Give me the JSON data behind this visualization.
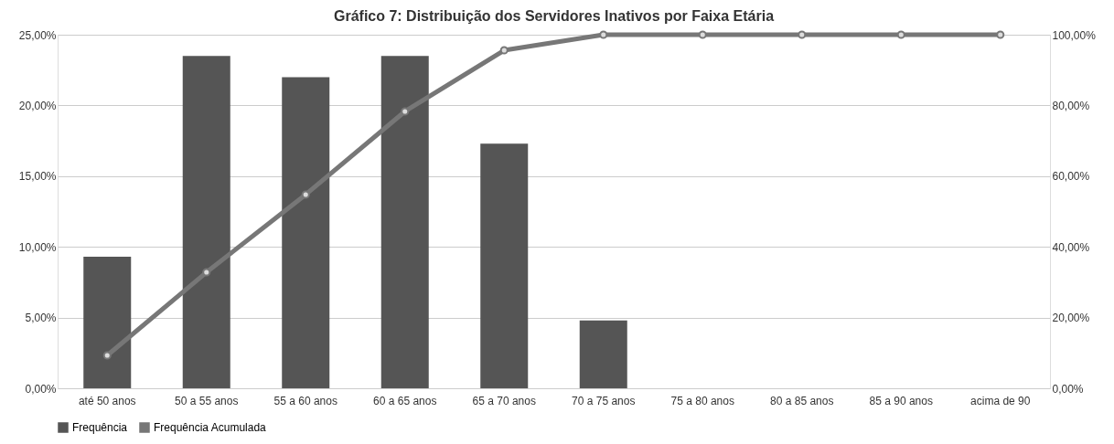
{
  "chart_data": {
    "type": "bar",
    "title": "Gráfico 7: Distribuição dos Servidores Inativos por Faixa Etária",
    "categories": [
      "até 50 anos",
      "50 a 55 anos",
      "55 a 60 anos",
      "60 a 65 anos",
      "65 a 70 anos",
      "70 a 75 anos",
      "75 a 80 anos",
      "80 a 85 anos",
      "85 a 90 anos",
      "acima de 90"
    ],
    "series": [
      {
        "name": "Frequência",
        "color": "#555555",
        "values": [
          9.3,
          23.5,
          22.0,
          23.5,
          17.3,
          4.8,
          0,
          0,
          0,
          0
        ]
      },
      {
        "name": "Frequência Acumulada",
        "type": "line",
        "axis": "y2",
        "color": "#777777",
        "marker": "circle",
        "values": [
          9.3,
          32.8,
          54.8,
          78.3,
          95.6,
          100,
          100,
          100,
          100,
          100
        ]
      }
    ],
    "ylim": [
      0,
      25
    ],
    "yticks": [
      {
        "value": 0,
        "label": "0,00%"
      },
      {
        "value": 5,
        "label": "5,00%"
      },
      {
        "value": 10,
        "label": "10,00%"
      },
      {
        "value": 15,
        "label": "15,00%"
      },
      {
        "value": 20,
        "label": "20,00%"
      },
      {
        "value": 25,
        "label": "25,00%"
      }
    ],
    "y2lim": [
      0,
      100
    ],
    "y2ticks": [
      {
        "value": 0,
        "label": "0,00%"
      },
      {
        "value": 20,
        "label": "20,00%"
      },
      {
        "value": 40,
        "label": "40,00%"
      },
      {
        "value": 60,
        "label": "60,00%"
      },
      {
        "value": 80,
        "label": "80,00%"
      },
      {
        "value": 100,
        "label": "100,00%"
      }
    ],
    "grid": "y",
    "legend": "bottom"
  }
}
